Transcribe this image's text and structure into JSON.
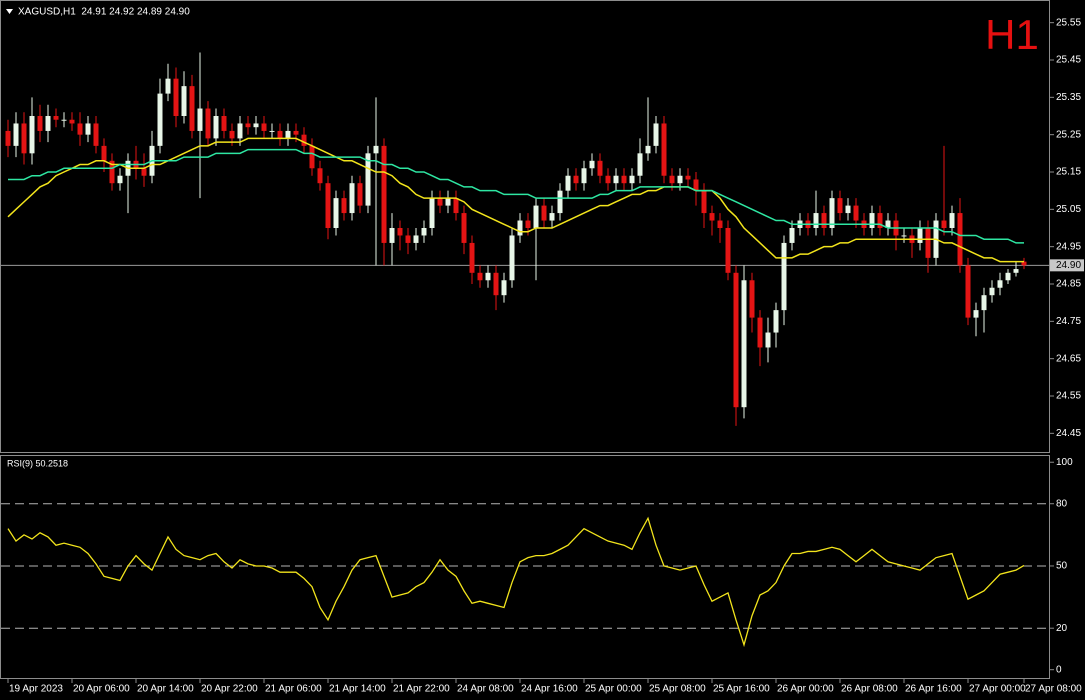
{
  "header": {
    "symbol_info": "XAGUSD,H1  24.91 24.92 24.89 24.90",
    "timeframe": "H1"
  },
  "chart_data": [
    {
      "type": "candlestick",
      "categories": [
        "19 Apr 2023",
        null,
        null,
        null,
        null,
        null,
        null,
        null,
        "20 Apr 06:00",
        null,
        null,
        null,
        null,
        null,
        null,
        null,
        "20 Apr 14:00",
        null,
        null,
        null,
        null,
        null,
        null,
        null,
        "20 Apr 22:00",
        null,
        null,
        null,
        null,
        null,
        null,
        null,
        "21 Apr 06:00",
        null,
        null,
        null,
        null,
        null,
        null,
        null,
        "21 Apr 14:00",
        null,
        null,
        null,
        null,
        null,
        null,
        null,
        "21 Apr 22:00",
        null,
        null,
        null,
        null,
        null,
        null,
        null,
        "24 Apr 08:00",
        null,
        null,
        null,
        null,
        null,
        null,
        null,
        "24 Apr 16:00",
        null,
        null,
        null,
        null,
        null,
        null,
        null,
        "25 Apr 00:00",
        null,
        null,
        null,
        null,
        null,
        null,
        null,
        "25 Apr 08:00",
        null,
        null,
        null,
        null,
        null,
        null,
        null,
        "25 Apr 16:00",
        null,
        null,
        null,
        null,
        null,
        null,
        null,
        "26 Apr 00:00",
        null,
        null,
        null,
        null,
        null,
        null,
        null,
        "26 Apr 08:00",
        null,
        null,
        null,
        null,
        null,
        null,
        null,
        "26 Apr 16:00",
        null,
        null,
        null,
        null,
        null,
        null,
        null,
        "27 Apr 00:00",
        null,
        null,
        null,
        null,
        null,
        null,
        "27 Apr 08:00"
      ],
      "open": [
        25.26,
        25.22,
        25.28,
        25.2,
        25.3,
        25.26,
        25.3,
        25.29,
        25.29,
        25.28,
        25.25,
        25.28,
        25.22,
        25.18,
        25.12,
        25.14,
        25.18,
        25.16,
        25.14,
        25.22,
        25.36,
        25.4,
        25.3,
        25.38,
        25.26,
        25.32,
        25.24,
        25.3,
        25.26,
        25.24,
        25.28,
        25.27,
        25.28,
        25.26,
        25.26,
        25.24,
        25.26,
        25.25,
        25.22,
        25.16,
        25.12,
        25.0,
        25.08,
        25.04,
        25.12,
        25.06,
        25.2,
        25.22,
        24.96,
        25.0,
        24.98,
        24.96,
        24.98,
        25.0,
        25.08,
        25.06,
        25.08,
        25.04,
        24.96,
        24.88,
        24.86,
        24.88,
        24.82,
        24.86,
        24.98,
        25.02,
        25.0,
        25.06,
        25.02,
        25.04,
        25.1,
        25.14,
        25.12,
        25.16,
        25.18,
        25.14,
        25.12,
        25.14,
        25.12,
        25.14,
        25.2,
        25.22,
        25.28,
        25.14,
        25.12,
        25.14,
        25.13,
        25.1,
        25.04,
        25.02,
        25.0,
        24.88,
        24.52,
        24.86,
        24.76,
        24.68,
        24.72,
        24.78,
        24.96,
        25.0,
        25.02,
        25.0,
        25.04,
        25.0,
        25.08,
        25.04,
        25.06,
        25.02,
        25.0,
        25.04,
        25.0,
        25.02,
        24.98,
        24.98,
        24.96,
        25.0,
        24.92,
        25.02,
        25.0,
        25.04,
        24.9,
        24.76,
        24.78,
        24.82,
        24.84,
        24.86,
        24.88,
        24.91
      ],
      "high": [
        25.29,
        25.31,
        25.31,
        25.35,
        25.33,
        25.33,
        25.32,
        25.31,
        25.31,
        25.31,
        25.3,
        25.3,
        25.24,
        25.2,
        25.16,
        25.2,
        25.22,
        25.2,
        25.26,
        25.4,
        25.44,
        25.43,
        25.42,
        25.41,
        25.47,
        25.34,
        25.32,
        25.32,
        25.28,
        25.3,
        25.3,
        25.3,
        25.3,
        25.28,
        25.28,
        25.28,
        25.28,
        25.27,
        25.24,
        25.18,
        25.14,
        25.1,
        25.1,
        25.14,
        25.14,
        25.22,
        25.35,
        25.24,
        25.04,
        25.02,
        25.0,
        25.0,
        25.02,
        25.1,
        25.1,
        25.1,
        25.1,
        25.06,
        24.98,
        24.9,
        24.9,
        24.9,
        24.88,
        25.0,
        25.04,
        25.04,
        25.08,
        25.08,
        25.06,
        25.12,
        25.16,
        25.16,
        25.18,
        25.2,
        25.2,
        25.16,
        25.16,
        25.16,
        25.16,
        25.24,
        25.35,
        25.3,
        25.3,
        25.16,
        25.16,
        25.16,
        25.15,
        25.12,
        25.06,
        25.04,
        25.02,
        24.9,
        24.9,
        24.88,
        24.78,
        24.76,
        24.8,
        24.98,
        25.02,
        25.04,
        25.04,
        25.1,
        25.06,
        25.1,
        25.1,
        25.08,
        25.08,
        25.04,
        25.06,
        25.06,
        25.04,
        25.04,
        25.0,
        25.0,
        25.02,
        25.02,
        25.04,
        25.22,
        25.06,
        25.08,
        24.92,
        24.8,
        24.84,
        24.86,
        24.88,
        24.89,
        24.91,
        24.92
      ],
      "low": [
        25.19,
        25.19,
        25.17,
        25.17,
        25.23,
        25.23,
        25.27,
        25.27,
        25.26,
        25.22,
        25.23,
        25.2,
        25.15,
        25.1,
        25.1,
        25.04,
        25.13,
        25.11,
        25.12,
        25.2,
        25.34,
        25.27,
        25.28,
        25.24,
        25.08,
        25.22,
        25.22,
        25.24,
        25.22,
        25.22,
        25.25,
        25.25,
        25.24,
        25.24,
        25.22,
        25.22,
        25.23,
        25.2,
        25.14,
        25.1,
        24.97,
        24.98,
        25.02,
        25.02,
        25.04,
        25.04,
        24.9,
        24.9,
        24.9,
        24.94,
        24.93,
        24.94,
        24.96,
        24.98,
        25.04,
        25.04,
        25.02,
        24.93,
        24.85,
        24.84,
        24.84,
        24.78,
        24.8,
        24.84,
        24.96,
        24.98,
        24.86,
        25.0,
        25.0,
        25.02,
        25.08,
        25.1,
        25.1,
        25.14,
        25.12,
        25.1,
        25.1,
        25.1,
        25.1,
        25.12,
        25.18,
        25.2,
        25.12,
        25.1,
        25.1,
        25.11,
        25.06,
        25.0,
        24.98,
        24.96,
        24.86,
        24.47,
        24.49,
        24.72,
        24.63,
        24.64,
        24.68,
        24.74,
        24.94,
        24.98,
        24.98,
        24.98,
        24.98,
        24.98,
        25.02,
        25.02,
        25.0,
        24.98,
        24.98,
        24.98,
        24.98,
        24.94,
        24.96,
        24.92,
        24.94,
        24.88,
        24.9,
        24.98,
        24.98,
        24.88,
        24.74,
        24.71,
        24.72,
        24.8,
        24.82,
        24.85,
        24.87,
        24.89
      ],
      "close": [
        25.22,
        25.28,
        25.2,
        25.3,
        25.26,
        25.3,
        25.29,
        25.29,
        25.28,
        25.25,
        25.28,
        25.22,
        25.18,
        25.12,
        25.14,
        25.18,
        25.16,
        25.14,
        25.22,
        25.36,
        25.4,
        25.3,
        25.38,
        25.26,
        25.32,
        25.24,
        25.3,
        25.26,
        25.24,
        25.28,
        25.27,
        25.28,
        25.26,
        25.26,
        25.24,
        25.26,
        25.25,
        25.22,
        25.16,
        25.12,
        25.0,
        25.08,
        25.04,
        25.12,
        25.06,
        25.2,
        25.22,
        24.96,
        25.0,
        24.98,
        24.96,
        24.98,
        25.0,
        25.08,
        25.06,
        25.08,
        25.04,
        24.96,
        24.88,
        24.86,
        24.88,
        24.82,
        24.86,
        24.98,
        25.02,
        25.0,
        25.06,
        25.02,
        25.04,
        25.1,
        25.14,
        25.12,
        25.16,
        25.18,
        25.14,
        25.12,
        25.14,
        25.12,
        25.14,
        25.2,
        25.22,
        25.28,
        25.14,
        25.12,
        25.14,
        25.13,
        25.1,
        25.04,
        25.02,
        25.0,
        24.88,
        24.52,
        24.86,
        24.76,
        24.68,
        24.72,
        24.78,
        24.96,
        25.0,
        25.02,
        25.0,
        25.04,
        25.0,
        25.08,
        25.04,
        25.06,
        25.02,
        25.0,
        25.04,
        25.0,
        25.02,
        24.98,
        24.98,
        24.96,
        25.0,
        24.92,
        25.02,
        25.0,
        25.04,
        24.9,
        24.76,
        24.78,
        24.82,
        24.84,
        24.86,
        24.88,
        24.89,
        24.9
      ],
      "up_color": "#e8f6e8",
      "down_color": "#e41414",
      "series": [
        {
          "color": "#f2e41c",
          "values": [
            25.03,
            25.05,
            25.07,
            25.09,
            25.11,
            25.12,
            25.14,
            25.15,
            25.16,
            25.17,
            25.17,
            25.18,
            25.18,
            25.17,
            25.17,
            25.16,
            25.16,
            25.16,
            25.17,
            25.17,
            25.18,
            25.19,
            25.2,
            25.21,
            25.22,
            25.22,
            25.23,
            25.23,
            25.23,
            25.23,
            25.24,
            25.24,
            25.24,
            25.24,
            25.24,
            25.24,
            25.24,
            25.23,
            25.22,
            25.21,
            25.2,
            25.19,
            25.18,
            25.18,
            25.17,
            25.16,
            25.15,
            25.15,
            25.14,
            25.12,
            25.11,
            25.09,
            25.08,
            25.08,
            25.08,
            25.08,
            25.08,
            25.07,
            25.05,
            25.04,
            25.03,
            25.02,
            25.01,
            25.0,
            24.99,
            24.99,
            25.0,
            25.0,
            25.0,
            25.01,
            25.02,
            25.03,
            25.04,
            25.05,
            25.06,
            25.06,
            25.07,
            25.08,
            25.09,
            25.09,
            25.1,
            25.1,
            25.11,
            25.11,
            25.11,
            25.11,
            25.1,
            25.1,
            25.1,
            25.08,
            25.05,
            25.03,
            25.0,
            24.98,
            24.96,
            24.94,
            24.92,
            24.92,
            24.92,
            24.93,
            24.93,
            24.94,
            24.95,
            24.95,
            24.96,
            24.96,
            24.97,
            24.97,
            24.97,
            24.97,
            24.97,
            24.97,
            24.97,
            24.97,
            24.97,
            24.97,
            24.97,
            24.96,
            24.96,
            24.95,
            24.94,
            24.93,
            24.92,
            24.92,
            24.91,
            24.91,
            24.91,
            24.91
          ]
        },
        {
          "color": "#2ee6a2",
          "values": [
            25.13,
            25.13,
            25.13,
            25.14,
            25.14,
            25.15,
            25.15,
            25.16,
            25.16,
            25.16,
            25.16,
            25.16,
            25.16,
            25.16,
            25.17,
            25.17,
            25.17,
            25.17,
            25.18,
            25.18,
            25.18,
            25.18,
            25.19,
            25.19,
            25.19,
            25.19,
            25.2,
            25.2,
            25.2,
            25.2,
            25.21,
            25.21,
            25.21,
            25.21,
            25.21,
            25.21,
            25.21,
            25.2,
            25.2,
            25.19,
            25.19,
            25.19,
            25.19,
            25.19,
            25.19,
            25.18,
            25.18,
            25.17,
            25.17,
            25.16,
            25.16,
            25.15,
            25.15,
            25.14,
            25.13,
            25.13,
            25.12,
            25.11,
            25.11,
            25.1,
            25.1,
            25.1,
            25.09,
            25.09,
            25.09,
            25.09,
            25.08,
            25.08,
            25.08,
            25.08,
            25.08,
            25.08,
            25.08,
            25.08,
            25.09,
            25.09,
            25.1,
            25.1,
            25.1,
            25.11,
            25.11,
            25.11,
            25.11,
            25.11,
            25.11,
            25.11,
            25.1,
            25.1,
            25.1,
            25.09,
            25.08,
            25.07,
            25.06,
            25.05,
            25.04,
            25.03,
            25.02,
            25.02,
            25.01,
            25.01,
            25.01,
            25.01,
            25.01,
            25.01,
            25.01,
            25.01,
            25.01,
            25.01,
            25.01,
            25.01,
            25.0,
            25.0,
            25.0,
            25.0,
            25.0,
            25.0,
            25.0,
            24.99,
            24.99,
            24.98,
            24.98,
            24.98,
            24.97,
            24.97,
            24.97,
            24.97,
            24.96,
            24.96
          ]
        }
      ],
      "ylim": [
        24.4,
        25.6
      ],
      "yticks": [
        24.45,
        24.55,
        24.65,
        24.75,
        24.85,
        24.95,
        25.05,
        25.15,
        25.25,
        25.35,
        25.45,
        25.55
      ],
      "price_line": {
        "value": 24.9,
        "label": "24.90"
      }
    },
    {
      "type": "line",
      "title": "RSI(9) 50.2518",
      "color": "#f2e41c",
      "values": [
        68,
        62,
        65,
        63,
        66,
        64,
        60,
        61,
        60,
        59,
        56,
        51,
        45,
        44,
        43,
        50,
        55,
        51,
        48,
        56,
        64,
        58,
        55,
        54,
        53,
        55,
        56,
        52,
        49,
        53,
        51,
        50,
        50,
        49,
        47,
        47,
        47,
        44,
        40,
        30,
        24,
        33,
        40,
        48,
        53,
        54,
        55,
        45,
        35,
        36,
        37,
        40,
        42,
        47,
        53,
        48,
        45,
        38,
        32,
        33,
        32,
        31,
        30,
        42,
        52,
        54,
        55,
        55,
        56,
        58,
        60,
        64,
        68,
        66,
        64,
        62,
        61,
        60,
        58,
        66,
        73,
        60,
        50,
        49,
        48,
        49,
        50,
        41,
        33,
        35,
        37,
        24,
        12,
        26,
        36,
        38,
        42,
        50,
        56,
        56,
        57,
        57,
        58,
        59,
        58,
        55,
        52,
        55,
        58,
        55,
        52,
        51,
        50,
        49,
        48,
        51,
        54,
        55,
        56,
        45,
        34,
        36,
        38,
        42,
        46,
        47,
        48,
        50.2518
      ],
      "ylim": [
        -4,
        103
      ],
      "yticks": [
        0,
        20,
        50,
        80,
        100
      ],
      "levels": [
        20,
        50,
        80
      ]
    }
  ]
}
